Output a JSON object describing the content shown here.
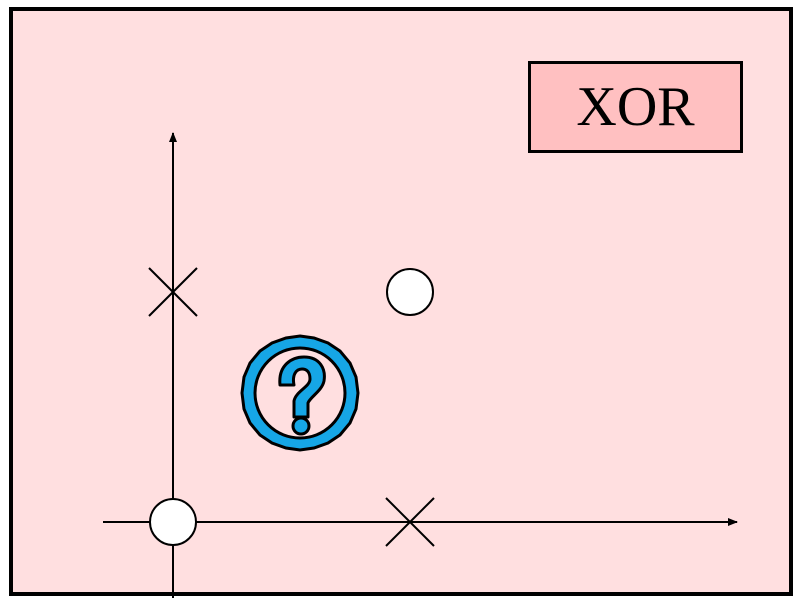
{
  "title": "XOR",
  "colors": {
    "background": "#ffdfe0",
    "title_box": "#ffc0c1",
    "question_icon": "#16a6e6",
    "point_fill": "#ffffff"
  },
  "chart_data": {
    "type": "scatter",
    "title": "XOR",
    "points": [
      {
        "x": 0,
        "y": 0,
        "marker": "circle",
        "class": "0"
      },
      {
        "x": 1,
        "y": 1,
        "marker": "circle",
        "class": "0"
      },
      {
        "x": 1,
        "y": 0,
        "marker": "cross",
        "class": "1"
      },
      {
        "x": 0,
        "y": 1,
        "marker": "cross",
        "class": "1"
      }
    ],
    "annotations": [
      {
        "icon": "question-mark-icon"
      }
    ],
    "grid": false
  }
}
